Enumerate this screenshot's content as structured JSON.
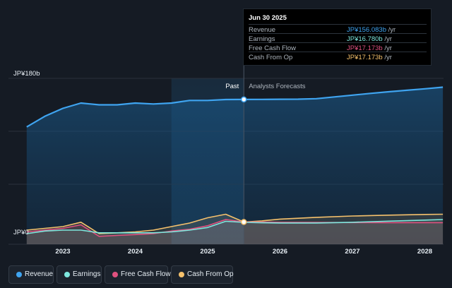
{
  "tooltip": {
    "date": "Jun 30 2025",
    "rows": [
      {
        "label": "Revenue",
        "value": "JP¥156.083b",
        "unit": "/yr",
        "color": "#3fa4f0"
      },
      {
        "label": "Earnings",
        "value": "JP¥16.780b",
        "unit": "/yr",
        "color": "#7ee8de"
      },
      {
        "label": "Free Cash Flow",
        "value": "JP¥17.173b",
        "unit": "/yr",
        "color": "#e0517f"
      },
      {
        "label": "Cash From Op",
        "value": "JP¥17.173b",
        "unit": "/yr",
        "color": "#f5c16c"
      }
    ]
  },
  "labels": {
    "past": "Past",
    "forecast": "Analysts Forecasts"
  },
  "legend": [
    {
      "label": "Revenue",
      "color": "#3fa4f0"
    },
    {
      "label": "Earnings",
      "color": "#7ee8de"
    },
    {
      "label": "Free Cash Flow",
      "color": "#e0517f"
    },
    {
      "label": "Cash From Op",
      "color": "#f5c16c"
    }
  ],
  "chart_data": {
    "type": "line",
    "y_tick_labels": [
      "JP¥180b",
      "JP¥0"
    ],
    "x_tick_labels": [
      "2023",
      "2024",
      "2025",
      "2026",
      "2027",
      "2028"
    ],
    "ylim": [
      0,
      180
    ],
    "xlim": [
      2022.5,
      2028.25
    ],
    "divider_x": 2025.5,
    "highlight_date": "Jun 30 2025",
    "series": [
      {
        "name": "Revenue",
        "color": "#3fa4f0",
        "x": [
          2022.5,
          2022.75,
          2023.0,
          2023.25,
          2023.5,
          2023.75,
          2024.0,
          2024.25,
          2024.5,
          2024.75,
          2025.0,
          2025.25,
          2025.5,
          2025.75,
          2026.0,
          2026.25,
          2026.5,
          2026.75,
          2027.0,
          2027.25,
          2027.5,
          2027.75,
          2028.0,
          2028.25
        ],
        "y": [
          125,
          137,
          146,
          152,
          150,
          150,
          152,
          151,
          152,
          155,
          155,
          156,
          156.1,
          156.2,
          156.3,
          156.4,
          157,
          159,
          161,
          163,
          164.8,
          166.5,
          168.2,
          170
        ]
      },
      {
        "name": "Earnings",
        "color": "#7ee8de",
        "x": [
          2022.5,
          2022.75,
          2023.0,
          2023.25,
          2023.5,
          2023.75,
          2024.0,
          2024.25,
          2024.5,
          2024.75,
          2025.0,
          2025.25,
          2025.5,
          2025.75,
          2026.0,
          2026.5,
          2027.0,
          2027.5,
          2028.0,
          2028.25
        ],
        "y": [
          4,
          7,
          8,
          8,
          5,
          5,
          5,
          5,
          6,
          8,
          11,
          18,
          16.8,
          16.3,
          16.1,
          16.1,
          16.9,
          18.2,
          19.4,
          20
        ]
      },
      {
        "name": "Free Cash Flow",
        "color": "#e0517f",
        "x": [
          2022.5,
          2022.75,
          2023.0,
          2023.25,
          2023.5,
          2023.75,
          2024.0,
          2024.25,
          2024.5,
          2024.75,
          2025.0,
          2025.25,
          2025.5,
          2025.75,
          2026.0,
          2026.5,
          2027.0,
          2027.5,
          2028.0,
          2028.25
        ],
        "y": [
          6,
          8,
          10,
          14,
          1,
          2,
          3,
          4,
          7,
          9,
          13,
          20,
          17.2,
          17.1,
          16.9,
          16.7,
          16.6,
          16.5,
          16.5,
          16.5
        ]
      },
      {
        "name": "Cash From Op",
        "color": "#f5c16c",
        "x": [
          2022.5,
          2022.75,
          2023.0,
          2023.25,
          2023.5,
          2023.75,
          2024.0,
          2024.25,
          2024.5,
          2024.75,
          2025.0,
          2025.25,
          2025.5,
          2025.75,
          2026.0,
          2026.5,
          2027.0,
          2027.5,
          2028.0,
          2028.25
        ],
        "y": [
          8,
          10,
          12,
          17,
          4,
          5,
          6,
          8,
          12,
          16,
          22,
          26,
          17.2,
          18.5,
          20.5,
          22.5,
          24,
          25,
          25.8,
          26
        ]
      }
    ]
  }
}
